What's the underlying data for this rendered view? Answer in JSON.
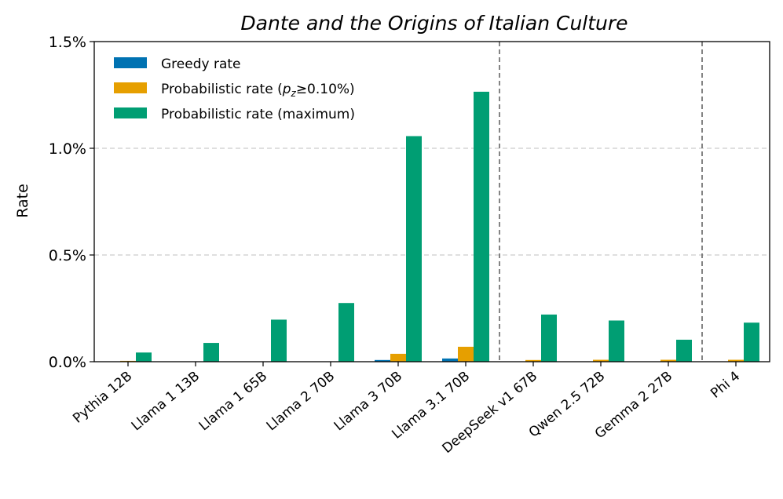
{
  "chart_data": {
    "type": "bar",
    "title": "Dante and the Origins of Italian Culture",
    "xlabel": "",
    "ylabel": "Rate",
    "ylim": [
      0,
      1.5
    ],
    "y_unit": "%",
    "yticks": [
      "0.0%",
      "0.5%",
      "1.0%",
      "1.5%"
    ],
    "grid": "horizontal dashed",
    "legend_position": "top-left",
    "categories": [
      "Pythia 12B",
      "Llama 1 13B",
      "Llama 1 65B",
      "Llama 2 70B",
      "Llama 3 70B",
      "Llama 3.1 70B",
      "DeepSeek v1 67B",
      "Qwen 2.5 72B",
      "Gemma 2 27B",
      "Phi 4"
    ],
    "group_separators_after": [
      "Llama 3.1 70B",
      "Gemma 2 27B"
    ],
    "series": [
      {
        "name": "Greedy rate",
        "color": "#0072b2",
        "values": [
          0,
          0,
          0,
          0,
          0.008,
          0.015,
          0,
          0,
          0,
          0
        ]
      },
      {
        "name": "Probabilistic rate (p_z≥0.10%)",
        "name_main": "Probabilistic rate (",
        "name_var": "p",
        "name_sub": "z",
        "name_rest": "≥0.10%)",
        "color": "#e69f00",
        "values": [
          0.004,
          0,
          0,
          0,
          0.037,
          0.07,
          0.008,
          0.009,
          0.009,
          0.009
        ]
      },
      {
        "name": "Probabilistic rate (maximum)",
        "color": "#009e73",
        "values": [
          0.043,
          0.088,
          0.197,
          0.275,
          1.057,
          1.265,
          0.221,
          0.193,
          0.103,
          0.183
        ]
      }
    ]
  }
}
